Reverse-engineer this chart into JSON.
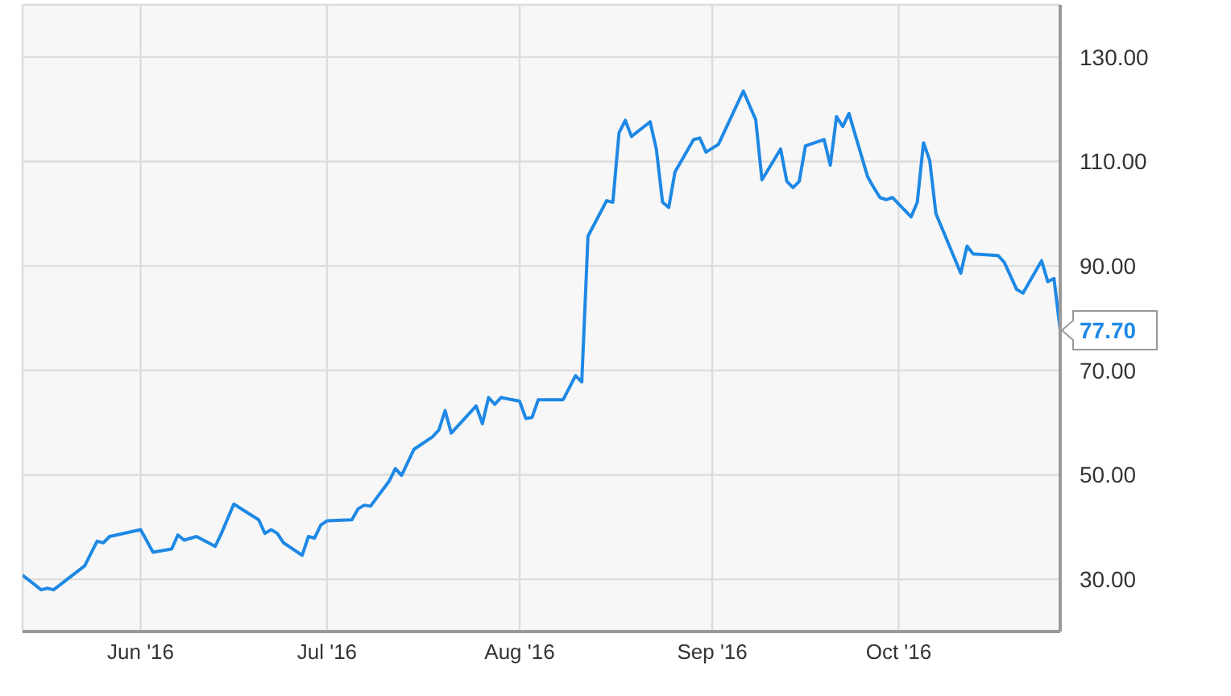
{
  "chart_data": {
    "type": "line",
    "x": [
      "2016-05-13",
      "2016-05-16",
      "2016-05-17",
      "2016-05-18",
      "2016-05-23",
      "2016-05-25",
      "2016-05-26",
      "2016-05-27",
      "2016-06-01",
      "2016-06-03",
      "2016-06-06",
      "2016-06-07",
      "2016-06-08",
      "2016-06-10",
      "2016-06-13",
      "2016-06-14",
      "2016-06-16",
      "2016-06-20",
      "2016-06-21",
      "2016-06-22",
      "2016-06-23",
      "2016-06-24",
      "2016-06-27",
      "2016-06-28",
      "2016-06-29",
      "2016-06-30",
      "2016-07-01",
      "2016-07-05",
      "2016-07-06",
      "2016-07-07",
      "2016-07-08",
      "2016-07-11",
      "2016-07-12",
      "2016-07-13",
      "2016-07-15",
      "2016-07-18",
      "2016-07-19",
      "2016-07-20",
      "2016-07-21",
      "2016-07-25",
      "2016-07-26",
      "2016-07-27",
      "2016-07-28",
      "2016-07-29",
      "2016-08-01",
      "2016-08-02",
      "2016-08-03",
      "2016-08-04",
      "2016-08-08",
      "2016-08-10",
      "2016-08-11",
      "2016-08-12",
      "2016-08-15",
      "2016-08-16",
      "2016-08-17",
      "2016-08-18",
      "2016-08-19",
      "2016-08-22",
      "2016-08-23",
      "2016-08-24",
      "2016-08-25",
      "2016-08-26",
      "2016-08-29",
      "2016-08-30",
      "2016-08-31",
      "2016-09-02",
      "2016-09-06",
      "2016-09-08",
      "2016-09-09",
      "2016-09-12",
      "2016-09-13",
      "2016-09-14",
      "2016-09-15",
      "2016-09-16",
      "2016-09-19",
      "2016-09-20",
      "2016-09-21",
      "2016-09-22",
      "2016-09-23",
      "2016-09-26",
      "2016-09-27",
      "2016-09-28",
      "2016-09-29",
      "2016-09-30",
      "2016-10-03",
      "2016-10-04",
      "2016-10-05",
      "2016-10-06",
      "2016-10-07",
      "2016-10-11",
      "2016-10-12",
      "2016-10-13",
      "2016-10-17",
      "2016-10-18",
      "2016-10-20",
      "2016-10-21",
      "2016-10-24",
      "2016-10-25",
      "2016-10-26",
      "2016-10-27"
    ],
    "series": [
      {
        "color": "#1e88e5",
        "values": [
          30.8,
          28.0,
          28.3,
          28.0,
          32.6,
          37.3,
          37.0,
          38.2,
          39.5,
          35.2,
          35.8,
          38.5,
          37.5,
          38.2,
          36.3,
          38.8,
          44.4,
          41.4,
          38.8,
          39.5,
          38.8,
          37.0,
          34.6,
          38.2,
          37.9,
          40.4,
          41.2,
          41.4,
          43.5,
          44.2,
          44.0,
          48.8,
          51.2,
          49.9,
          54.9,
          57.3,
          58.6,
          62.3,
          58.0,
          63.2,
          59.8,
          64.8,
          63.5,
          64.8,
          64.1,
          60.8,
          61.0,
          64.4,
          64.4,
          69.0,
          67.8,
          95.7,
          102.5,
          102.2,
          115.5,
          117.9,
          114.8,
          117.6,
          112.4,
          102.2,
          101.2,
          108.0,
          114.2,
          114.5,
          111.8,
          113.3,
          123.5,
          118.0,
          106.5,
          112.4,
          106.2,
          105.0,
          106.2,
          113.0,
          114.2,
          109.3,
          118.6,
          116.7,
          119.2,
          107.1,
          105.0,
          103.1,
          102.7,
          103.1,
          99.4,
          102.2,
          113.6,
          110.2,
          100.0,
          88.6,
          93.8,
          92.3,
          92.0,
          90.7,
          85.5,
          84.8,
          91.0,
          87.0,
          87.6,
          77.7
        ]
      }
    ],
    "xlim": [
      "2016-05-13",
      "2016-10-27"
    ],
    "xticks": [
      {
        "value": "2016-06-01",
        "label": "Jun '16"
      },
      {
        "value": "2016-07-01",
        "label": "Jul '16"
      },
      {
        "value": "2016-08-01",
        "label": "Aug '16"
      },
      {
        "value": "2016-09-01",
        "label": "Sep '16"
      },
      {
        "value": "2016-10-01",
        "label": "Oct '16"
      }
    ],
    "ylim": [
      20,
      140
    ],
    "yticks": [
      {
        "value": 30,
        "label": "30.00"
      },
      {
        "value": 50,
        "label": "50.00"
      },
      {
        "value": 70,
        "label": "70.00"
      },
      {
        "value": 90,
        "label": "90.00"
      },
      {
        "value": 110,
        "label": "110.00"
      },
      {
        "value": 130,
        "label": "130.00"
      }
    ],
    "grid": true,
    "annotations": [
      {
        "text": "77.70",
        "x": "2016-10-27",
        "y": 77.7
      }
    ]
  }
}
